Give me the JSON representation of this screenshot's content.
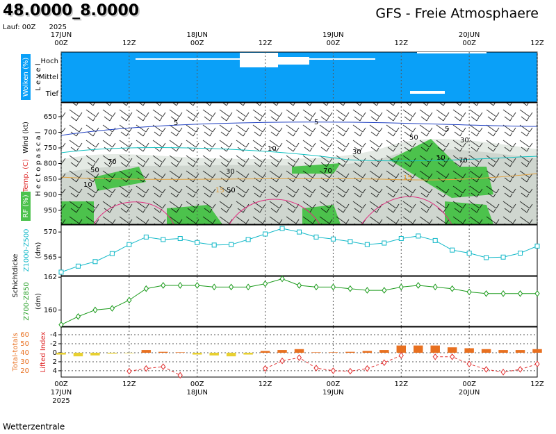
{
  "header": {
    "location": "48.0000_8.0000",
    "title": "GFS - Freie Atmosphaere",
    "run": "Lauf: 00Z"
  },
  "time_axis": {
    "hours": [
      "00Z",
      "12Z",
      "00Z",
      "12Z",
      "00Z",
      "12Z",
      "00Z",
      "12Z"
    ],
    "dates": [
      "17JUN",
      "18JUN",
      "19JUN",
      "20JUN"
    ],
    "year": "2025"
  },
  "cloud_panel": {
    "label": "Wolken (%)",
    "axis_label": "L e v e l",
    "levels": [
      "Hoch",
      "Mittel",
      "Tief"
    ]
  },
  "wind_panel": {
    "label": "Wind (kt)",
    "axis_label": "H e c t o p a s c a l",
    "temp_label": "Temp. (C)",
    "rh_label": "RF (%)",
    "pressure_ticks": [
      650,
      700,
      750,
      800,
      850,
      900,
      950
    ],
    "contour_labels": [
      "5",
      "5",
      "5",
      "10",
      "10",
      "10",
      "30",
      "30",
      "30",
      "50",
      "50",
      "50",
      "70",
      "70",
      "70",
      "15",
      "15"
    ]
  },
  "thickness_label": "Schichtdicke",
  "chart_data": [
    {
      "type": "line",
      "marker": "square",
      "unit_label": "(dm)",
      "x": [
        0,
        3,
        6,
        9,
        12,
        15,
        18,
        21,
        24,
        27,
        30,
        33,
        36,
        39,
        42,
        45,
        48,
        51,
        54,
        57,
        60,
        63,
        66,
        69,
        72,
        75,
        78,
        81,
        84
      ],
      "xlim": [
        0,
        84
      ],
      "series": [
        {
          "name": "Z1000-Z500",
          "color": "#10b8c8",
          "values": [
            562.0,
            563.2,
            564.1,
            565.7,
            567.5,
            569.0,
            568.5,
            568.7,
            567.9,
            567.4,
            567.5,
            568.5,
            569.6,
            570.7,
            570.0,
            569.0,
            568.6,
            568.1,
            567.5,
            567.8,
            568.7,
            569.2,
            568.3,
            566.4,
            565.8,
            564.9,
            565.0,
            565.8,
            567.2
          ]
        }
      ],
      "ylim": [
        561.3,
        571.4
      ],
      "yticks": [
        565,
        570
      ]
    },
    {
      "type": "line",
      "marker": "diamond",
      "unit_label": "(dm)",
      "x": [
        0,
        3,
        6,
        9,
        12,
        15,
        18,
        21,
        24,
        27,
        30,
        33,
        36,
        39,
        42,
        45,
        48,
        51,
        54,
        57,
        60,
        63,
        66,
        69,
        72,
        75,
        78,
        81,
        84
      ],
      "xlim": [
        0,
        84
      ],
      "series": [
        {
          "name": "Z700-Z850",
          "color": "#1a9a1a",
          "values": [
            159.1,
            159.6,
            160.0,
            160.1,
            160.6,
            161.3,
            161.5,
            161.5,
            161.5,
            161.4,
            161.4,
            161.4,
            161.6,
            161.9,
            161.5,
            161.4,
            161.4,
            161.3,
            161.2,
            161.2,
            161.4,
            161.5,
            161.4,
            161.3,
            161.1,
            161.0,
            161.0,
            161.0,
            161.0
          ]
        }
      ],
      "ylim": [
        159.0,
        162.05
      ],
      "yticks": [
        160,
        162
      ]
    },
    {
      "type": "bar",
      "x": [
        0,
        3,
        6,
        9,
        12,
        15,
        18,
        21,
        24,
        27,
        30,
        33,
        36,
        39,
        42,
        45,
        48,
        51,
        54,
        57,
        60,
        63,
        66,
        69,
        72,
        75,
        78,
        81,
        84
      ],
      "xlim": [
        0,
        84
      ],
      "base": 40,
      "grid": true,
      "series": [
        {
          "name": "Total-totals",
          "color": "#e87020",
          "color_below": "#e8d030",
          "values": [
            38,
            36,
            37,
            39,
            39.5,
            43,
            41,
            40.5,
            38,
            37,
            36,
            38,
            42,
            43,
            44,
            40.5,
            40.5,
            41,
            42,
            43,
            48,
            48,
            48,
            46,
            45,
            44,
            43,
            43,
            44
          ]
        },
        {
          "name": "Lifted Index",
          "color": "#e03030",
          "axis": "y2",
          "values": [
            null,
            null,
            null,
            null,
            4.1,
            3.5,
            3.1,
            5.0,
            null,
            null,
            null,
            null,
            3.5,
            1.8,
            1.1,
            3.4,
            4.0,
            4.1,
            3.5,
            2.2,
            0.6,
            null,
            0.9,
            0.9,
            2.5,
            3.7,
            4.3,
            3.7,
            2.5
          ]
        }
      ],
      "ylim": [
        13,
        68.5
      ],
      "yticks": [
        20,
        30,
        40,
        50,
        60
      ],
      "y2lim": [
        5.4,
        -5.7
      ],
      "y2ticks": [
        4,
        2,
        0,
        -2,
        -4
      ]
    }
  ],
  "footer": "Wetterzentrale"
}
